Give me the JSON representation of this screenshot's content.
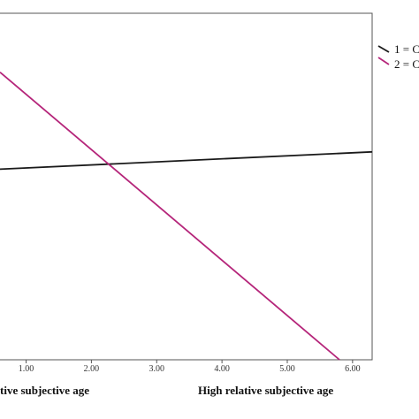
{
  "chart_data": {
    "type": "line",
    "title": "",
    "xlabel": "",
    "ylabel": "",
    "xlim": [
      0.6,
      6.3
    ],
    "ylim": [
      0,
      1
    ],
    "x_ticks": [
      "1.00",
      "2.00",
      "3.00",
      "4.00",
      "5.00",
      "6.00"
    ],
    "x_tick_values": [
      1,
      2,
      3,
      4,
      5,
      6
    ],
    "x_captions": [
      "tive subjective age",
      "High relative subjective age"
    ],
    "grid": false,
    "legend_position": "right",
    "series": [
      {
        "name": "1 = C",
        "color": "#1a1a1a",
        "x": [
          0.6,
          6.3
        ],
        "y": [
          0.55,
          0.6
        ]
      },
      {
        "name": "2 = C",
        "color": "#b5257a",
        "x": [
          0.6,
          5.8
        ],
        "y": [
          0.83,
          0.0
        ]
      }
    ]
  }
}
